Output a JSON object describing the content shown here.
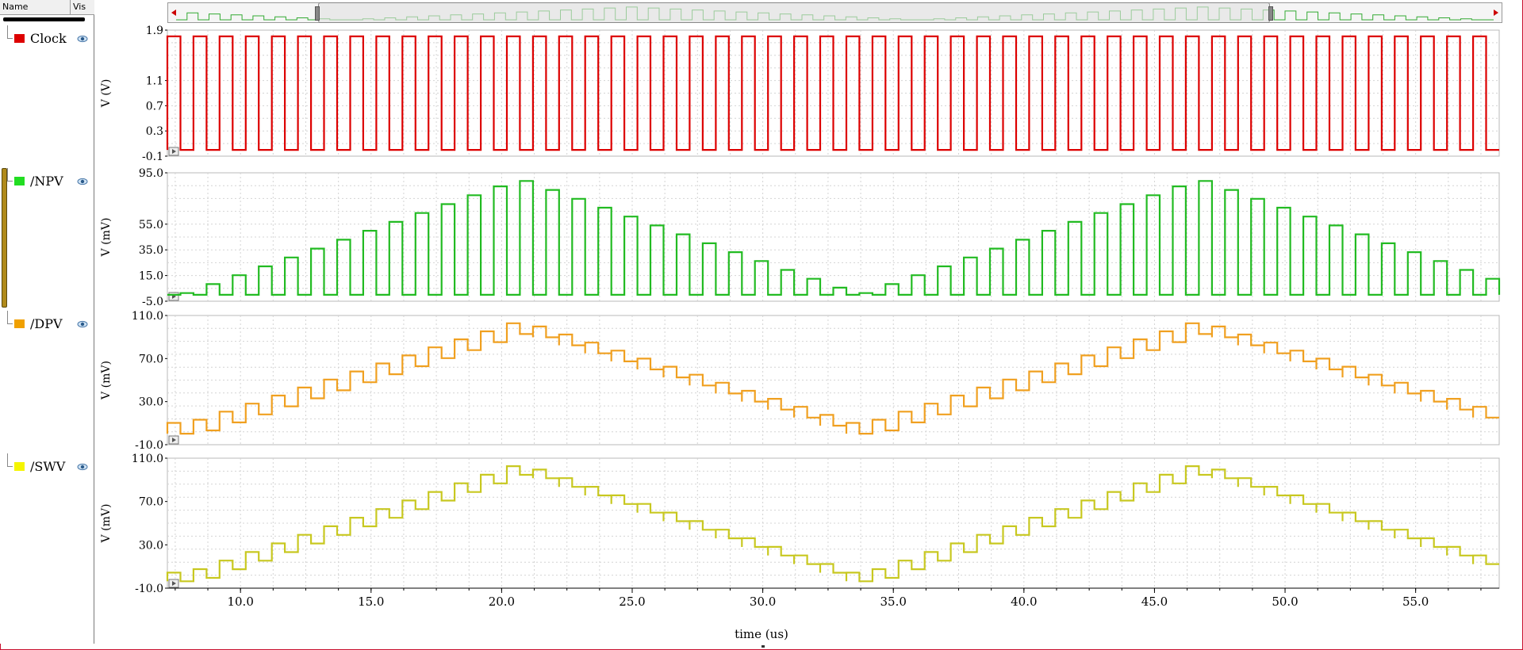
{
  "panel": {
    "header": {
      "name": "Name",
      "vis": "Vis"
    },
    "signals": [
      {
        "name": "Clock",
        "color": "#dd0000"
      },
      {
        "name": "/NPV",
        "color": "#22cc22"
      },
      {
        "name": "/DPV",
        "color": "#f0a000"
      },
      {
        "name": "/SWV",
        "color": "#f0f000"
      }
    ]
  },
  "xaxis": {
    "title": "time (us)",
    "range": [
      7.2,
      58.2
    ],
    "ticks": [
      "10.0",
      "15.0",
      "20.0",
      "25.0",
      "30.0",
      "35.0",
      "40.0",
      "45.0",
      "50.0",
      "55.0"
    ],
    "tick_values": [
      10,
      15,
      20,
      25,
      30,
      35,
      40,
      45,
      50,
      55
    ]
  },
  "plots": [
    {
      "name": "clock",
      "ylabel": "V (V)",
      "ylim": [
        -0.1,
        1.9
      ],
      "ticks": [
        "1.9",
        "1.1",
        "0.7",
        "0.3",
        "-0.1"
      ],
      "tick_values": [
        1.9,
        1.1,
        0.7,
        0.3,
        -0.1
      ],
      "color": "#dd0000"
    },
    {
      "name": "npv",
      "ylabel": "V (mV)",
      "ylim": [
        -5.0,
        95.0
      ],
      "ticks": [
        "95.0",
        "55.0",
        "35.0",
        "15.0",
        "-5.0"
      ],
      "tick_values": [
        95,
        55,
        35,
        15,
        -5
      ],
      "color": "#22bb22"
    },
    {
      "name": "dpv",
      "ylabel": "V (mV)",
      "ylim": [
        -10.0,
        110.0
      ],
      "ticks": [
        "110.0",
        "70.0",
        "30.0",
        "-10.0"
      ],
      "tick_values": [
        110,
        70,
        30,
        -10
      ],
      "color": "#f0a020"
    },
    {
      "name": "swv",
      "ylabel": "V (mV)",
      "ylim": [
        -10.0,
        110.0
      ],
      "ticks": [
        "110.0",
        "70.0",
        "30.0",
        "-10.0"
      ],
      "tick_values": [
        110,
        70,
        30,
        -10
      ],
      "color": "#c8c820"
    }
  ],
  "chart_data": {
    "type": "line",
    "x_unit": "us",
    "step_period_us": 1.0,
    "series": [
      {
        "name": "Clock",
        "kind": "square",
        "low": 0.0,
        "high": 1.8,
        "period_us": 1.0
      },
      {
        "name": "/NPV",
        "kind": "pulses",
        "base": 0.0,
        "peak_start": 5,
        "peak_max": 90,
        "peak_min": 0,
        "triangle_period_us": 26.0,
        "min_at_us": 33.5,
        "max_at_us": 20.5
      },
      {
        "name": "/DPV",
        "kind": "staircase",
        "min": -2,
        "max": 105,
        "pulse": 10,
        "triangle_period_us": 26.0,
        "min_at_us": 33.5,
        "max_at_us": 20.5
      },
      {
        "name": "/SWV",
        "kind": "staircase",
        "min": -6,
        "max": 105,
        "pulse": 8,
        "triangle_period_us": 26.0,
        "min_at_us": 33.5,
        "max_at_us": 20.5
      }
    ]
  }
}
